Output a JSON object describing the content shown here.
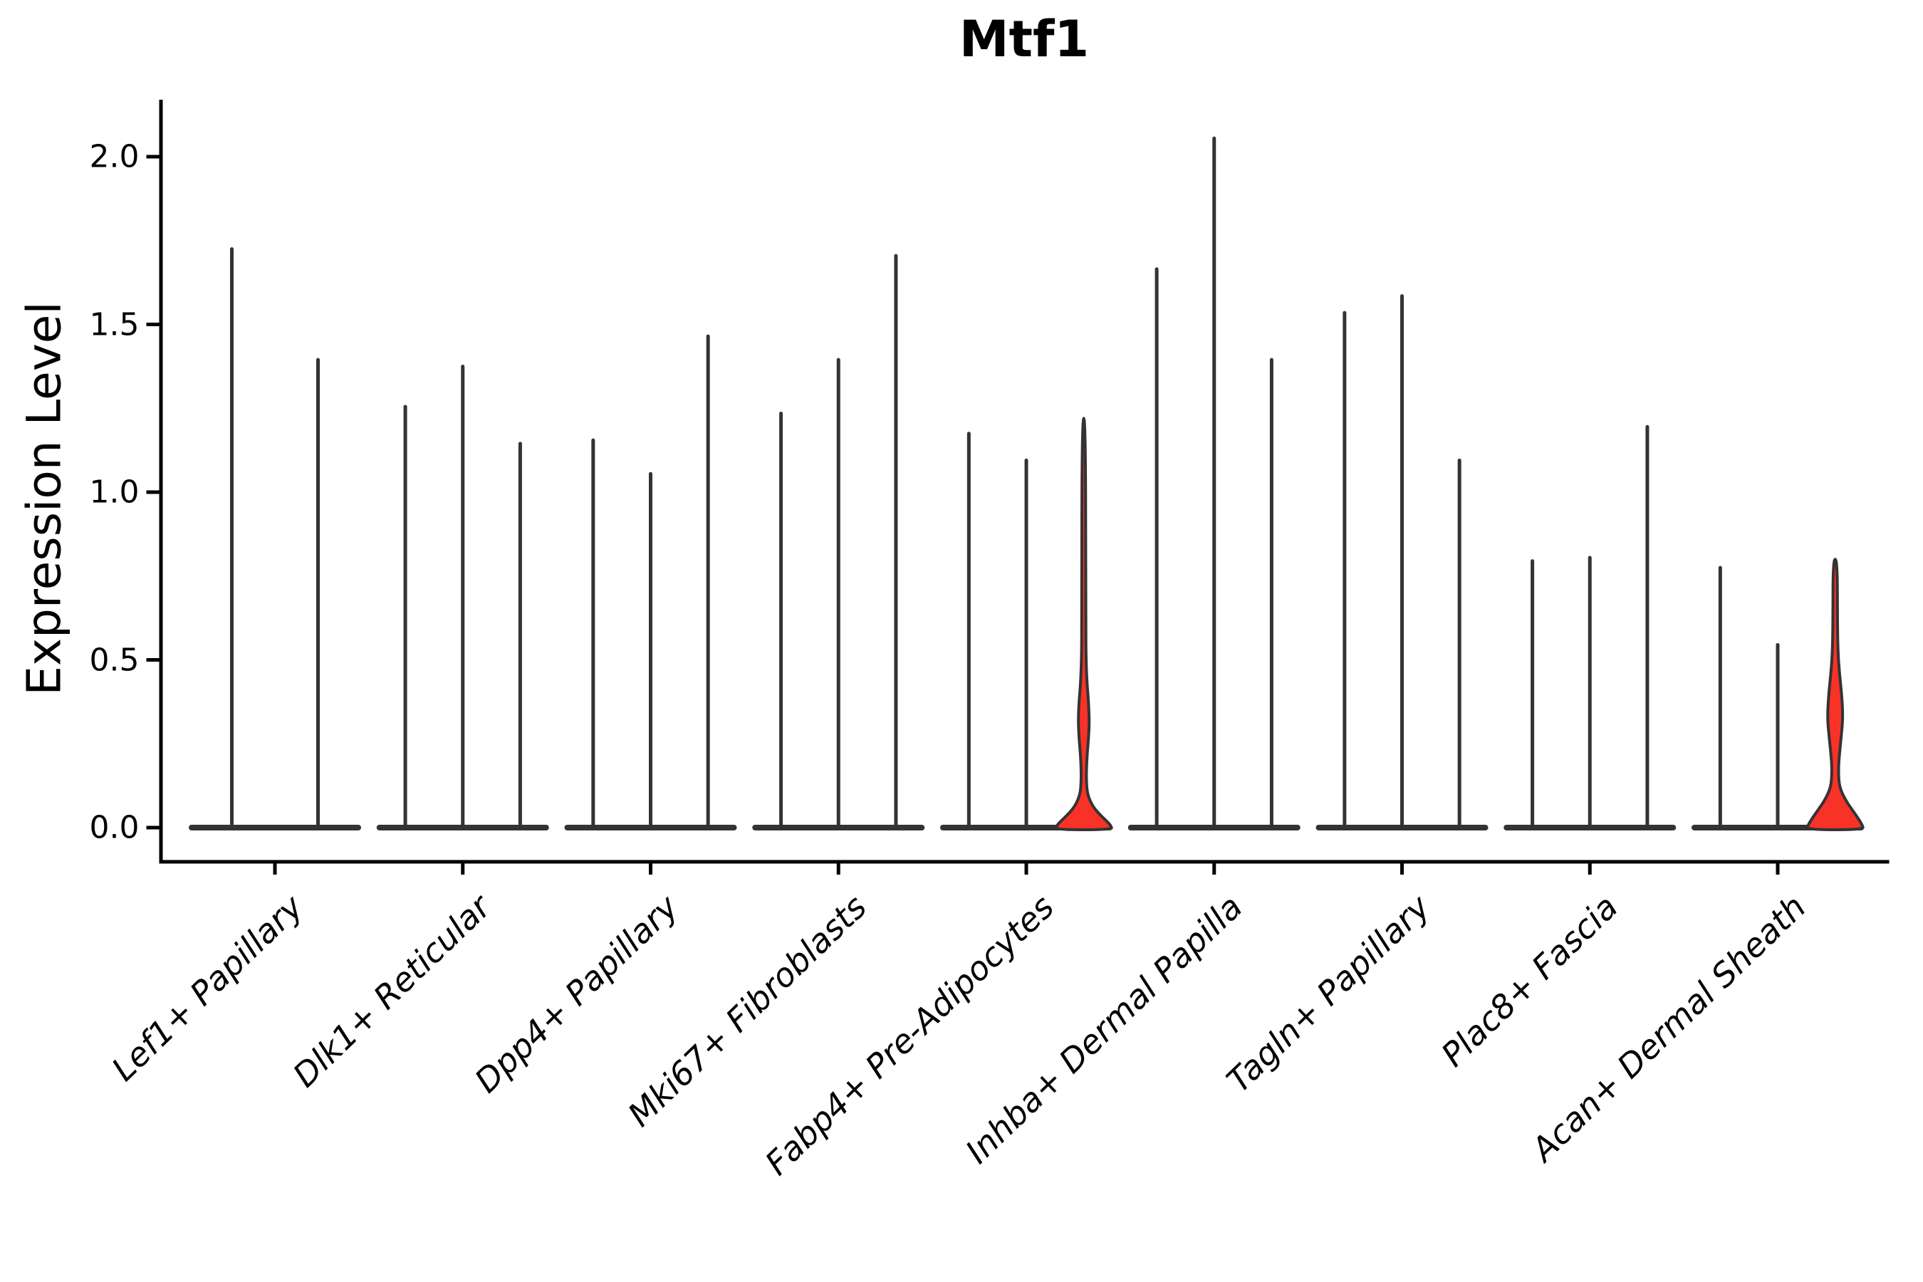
{
  "title": "Mtf1",
  "axes": {
    "y_label": "Expression Level",
    "y_ticks": [
      {
        "label": "0.0",
        "value": 0.0
      },
      {
        "label": "0.5",
        "value": 0.5
      },
      {
        "label": "1.0",
        "value": 1.0
      },
      {
        "label": "1.5",
        "value": 1.5
      },
      {
        "label": "2.0",
        "value": 2.0
      }
    ]
  },
  "colors": {
    "violin_stroke": "#333333",
    "violin_highlight_fill": "#f93228",
    "axis_color": "#000000",
    "text_color": "#000000",
    "background": "#ffffff"
  },
  "chart_data": {
    "type": "violin",
    "title": "Mtf1",
    "xlabel": "",
    "ylabel": "Expression Level",
    "ylim": [
      0,
      2.17
    ],
    "y_tick_values": [
      0.0,
      0.5,
      1.0,
      1.5,
      2.0
    ],
    "grid": false,
    "legend": "none",
    "description": "Spike-like expression violins per cell type; groups of 2-3 violins share one flat zero-density base; two violins carry red-filled density bulges",
    "categories": [
      "Lef1+ Papillary",
      "Dlk1+ Reticular",
      "Dpp4+ Papillary",
      "Mki67+ Fibroblasts",
      "Fabp4+ Pre-Adipocytes",
      "Inhba+ Dermal Papilla",
      "Tagln+ Papillary",
      "Plac8+ Fascia",
      "Acan+ Dermal Sheath"
    ],
    "groups": [
      {
        "category": "Lef1+ Papillary",
        "violins": [
          {
            "max": 1.73
          },
          {
            "max": 1.4
          }
        ]
      },
      {
        "category": "Dlk1+ Reticular",
        "violins": [
          {
            "max": 1.26
          },
          {
            "max": 1.38
          },
          {
            "max": 1.15
          }
        ]
      },
      {
        "category": "Dpp4+ Papillary",
        "violins": [
          {
            "max": 1.16
          },
          {
            "max": 1.06
          },
          {
            "max": 1.47
          }
        ]
      },
      {
        "category": "Mki67+ Fibroblasts",
        "violins": [
          {
            "max": 1.24
          },
          {
            "max": 1.4
          },
          {
            "max": 1.71
          }
        ]
      },
      {
        "category": "Fabp4+ Pre-Adipocytes",
        "violins": [
          {
            "max": 1.18
          },
          {
            "max": 1.1
          },
          {
            "max": 1.22,
            "highlighted": true,
            "profile": [
              [
                1.22,
                2.5
              ],
              [
                0.6,
                2.8
              ],
              [
                0.5,
                3.2
              ],
              [
                0.43,
                4.5
              ],
              [
                0.38,
                6.5
              ],
              [
                0.32,
                7.8
              ],
              [
                0.27,
                6.8
              ],
              [
                0.22,
                4.8
              ],
              [
                0.18,
                3.8
              ],
              [
                0.14,
                3.6
              ],
              [
                0.1,
                5.0
              ],
              [
                0.065,
                12
              ],
              [
                0.04,
                22
              ],
              [
                0.02,
                32
              ],
              [
                0.006,
                38
              ],
              [
                0,
                40
              ]
            ]
          }
        ]
      },
      {
        "category": "Inhba+ Dermal Papilla",
        "violins": [
          {
            "max": 1.67
          },
          {
            "max": 2.06
          },
          {
            "max": 1.4
          }
        ]
      },
      {
        "category": "Tagln+ Papillary",
        "violins": [
          {
            "max": 1.54
          },
          {
            "max": 1.59
          },
          {
            "max": 1.1
          }
        ]
      },
      {
        "category": "Plac8+ Fascia",
        "violins": [
          {
            "max": 0.8
          },
          {
            "max": 0.81
          },
          {
            "max": 1.2
          }
        ]
      },
      {
        "category": "Acan+ Dermal Sheath",
        "violins": [
          {
            "max": 0.78
          },
          {
            "max": 0.55
          },
          {
            "max": 0.8,
            "highlighted": true,
            "profile": [
              [
                0.8,
                3.0
              ],
              [
                0.6,
                3.2
              ],
              [
                0.52,
                4.0
              ],
              [
                0.46,
                6.0
              ],
              [
                0.4,
                9.0
              ],
              [
                0.33,
                11.0
              ],
              [
                0.27,
                8.5
              ],
              [
                0.21,
                5.5
              ],
              [
                0.165,
                4.5
              ],
              [
                0.12,
                6.0
              ],
              [
                0.08,
                15
              ],
              [
                0.05,
                25
              ],
              [
                0.025,
                33
              ],
              [
                0.008,
                38
              ],
              [
                0,
                40
              ]
            ]
          }
        ]
      }
    ]
  }
}
